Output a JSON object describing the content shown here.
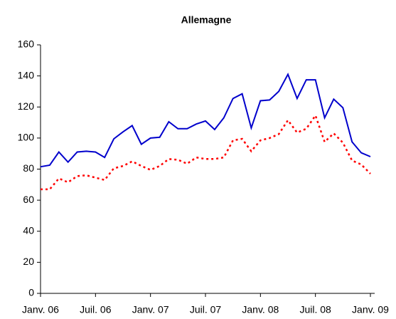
{
  "chart_data": {
    "type": "line",
    "title": "Allemagne",
    "categories": [
      "Janv. 06",
      null,
      null,
      null,
      null,
      null,
      "Juil. 06",
      null,
      null,
      null,
      null,
      null,
      "Janv. 07",
      null,
      null,
      null,
      null,
      null,
      "Juil. 07",
      null,
      null,
      null,
      null,
      null,
      "Janv. 08",
      null,
      null,
      null,
      null,
      null,
      "Juil. 08",
      null,
      null,
      null,
      null,
      null,
      "Janv. 09"
    ],
    "series": [
      {
        "color": "#0000cc",
        "style": "solid",
        "values": [
          81.5,
          82.5,
          91,
          84.5,
          91,
          91.5,
          91,
          87.5,
          99.5,
          104,
          108,
          96,
          100,
          100.5,
          110.5,
          106,
          106,
          109,
          111,
          105.5,
          113,
          125.5,
          128.5,
          106.5,
          124,
          124.5,
          130,
          141,
          125.5,
          137.5,
          137.5,
          113,
          125,
          119.5,
          97.5,
          90.5,
          88
        ]
      },
      {
        "color": "#ff0000",
        "style": "dotted",
        "values": [
          67,
          67,
          74,
          71.5,
          75.5,
          76,
          74.5,
          73,
          80.5,
          82,
          85,
          82,
          79.5,
          82,
          86.5,
          86,
          83.5,
          87.5,
          86.5,
          86.5,
          87.5,
          98.5,
          99.5,
          91.5,
          98.5,
          100,
          102.5,
          111.5,
          103.5,
          106,
          114.5,
          97.5,
          103,
          97,
          85.5,
          83,
          77
        ]
      }
    ],
    "ylim": [
      0,
      160
    ],
    "yticks": [
      0,
      20,
      40,
      60,
      80,
      100,
      120,
      140,
      160
    ]
  }
}
